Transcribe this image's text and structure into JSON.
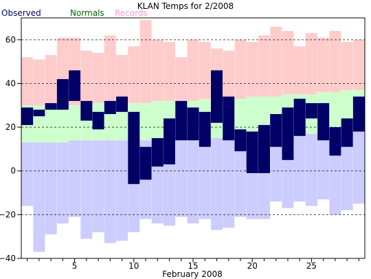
{
  "chart_data": {
    "type": "bar",
    "title": "KLAN Temps for 2/2008",
    "xlabel": "February 2008",
    "ylabel": "",
    "ylim": [
      -40,
      70
    ],
    "xlim": [
      0.5,
      29.5
    ],
    "yticks": [
      -40,
      -20,
      0,
      20,
      40,
      60
    ],
    "xticks": [
      5,
      10,
      15,
      20,
      25
    ],
    "grid": "horizontal dashed at y ticks",
    "legend": {
      "placement": "top-left, above plot",
      "items": [
        {
          "label": "Observed",
          "color": "#000066"
        },
        {
          "label": "Normals",
          "color": "#006600"
        },
        {
          "label": "Records",
          "color": "#ff99cc"
        }
      ]
    },
    "colors": {
      "observed": "#000066",
      "normals": "#ccffcc",
      "records_high": "#ffcccc",
      "records_low": "#ccccff",
      "grid": "#000000"
    },
    "days": [
      1,
      2,
      3,
      4,
      5,
      6,
      7,
      8,
      9,
      10,
      11,
      12,
      13,
      14,
      15,
      16,
      17,
      18,
      19,
      20,
      21,
      22,
      23,
      24,
      25,
      26,
      27,
      28,
      29
    ],
    "series": [
      {
        "name": "Records",
        "high": [
          52,
          51,
          53,
          61,
          61,
          55,
          54,
          62,
          53,
          57,
          69,
          60,
          59,
          52,
          60,
          59,
          56,
          55,
          60,
          59,
          62,
          66,
          64,
          57,
          63,
          61,
          64,
          59,
          60
        ],
        "low": [
          -16,
          -37,
          -29,
          -24,
          -21,
          -31,
          -28,
          -33,
          -32,
          -28,
          -22,
          -24,
          -25,
          -21,
          -24,
          -22,
          -27,
          -26,
          -21,
          -22,
          -22,
          -14,
          -17,
          -14,
          -16,
          -13,
          -20,
          -18,
          -15
        ]
      },
      {
        "name": "Normals",
        "high": [
          30,
          30,
          30,
          30,
          30,
          31,
          31,
          31,
          31,
          31,
          31,
          32,
          32,
          32,
          32,
          33,
          33,
          33,
          33,
          34,
          34,
          34,
          35,
          35,
          35,
          36,
          36,
          37,
          37
        ],
        "low": [
          13,
          13,
          13,
          13,
          14,
          14,
          14,
          14,
          14,
          14,
          14,
          14,
          15,
          15,
          15,
          15,
          15,
          16,
          16,
          16,
          16,
          16,
          16,
          17,
          17,
          17,
          17,
          17,
          18
        ]
      },
      {
        "name": "Observed",
        "high": [
          29,
          28,
          31,
          42,
          46,
          32,
          27,
          32,
          34,
          27,
          11,
          15,
          24,
          32,
          29,
          27,
          46,
          34,
          19,
          18,
          21,
          26,
          29,
          33,
          31,
          31,
          20,
          24,
          34
        ],
        "low": [
          21,
          25,
          28,
          28,
          32,
          23,
          19,
          26,
          27,
          -6,
          -4,
          2,
          3,
          14,
          14,
          11,
          22,
          14,
          9,
          -1,
          -1,
          11,
          5,
          16,
          24,
          14,
          7,
          11,
          18
        ]
      }
    ]
  }
}
